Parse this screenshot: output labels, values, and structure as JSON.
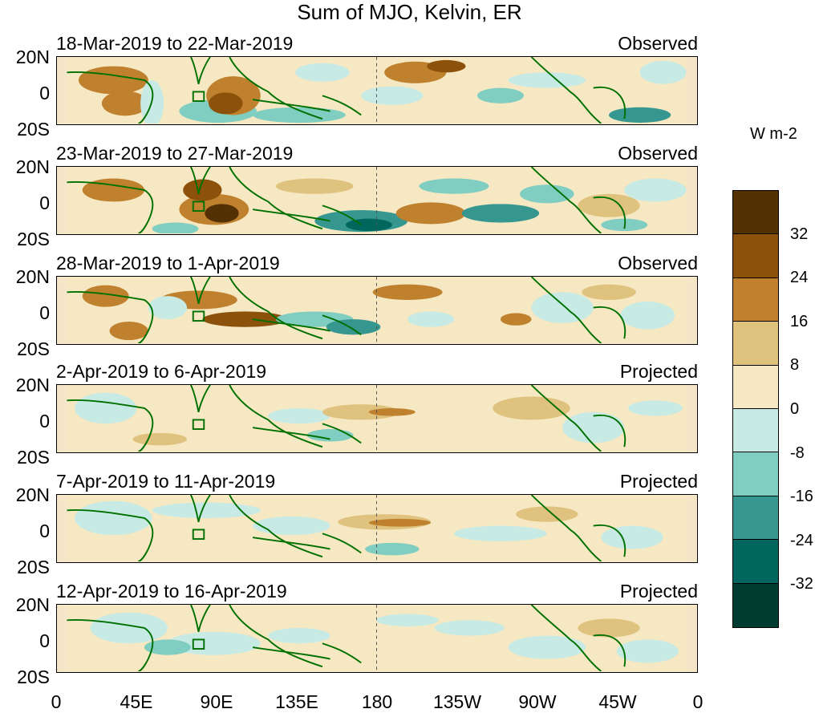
{
  "title": "Sum of MJO, Kelvin, ER",
  "lat_labels": [
    "20N",
    "0",
    "20S"
  ],
  "lon_labels": [
    "0",
    "45E",
    "90E",
    "135E",
    "180",
    "135W",
    "90W",
    "45W",
    "0"
  ],
  "panels": [
    {
      "period": "18-Mar-2019 to 22-Mar-2019",
      "status": "Observed"
    },
    {
      "period": "23-Mar-2019 to 27-Mar-2019",
      "status": "Observed"
    },
    {
      "period": "28-Mar-2019 to 1-Apr-2019",
      "status": "Observed"
    },
    {
      "period": "2-Apr-2019 to 6-Apr-2019",
      "status": "Projected"
    },
    {
      "period": "7-Apr-2019 to 11-Apr-2019",
      "status": "Projected"
    },
    {
      "period": "12-Apr-2019 to 16-Apr-2019",
      "status": "Projected"
    }
  ],
  "colorbar": {
    "units": "W m-2",
    "labels": [
      "32",
      "24",
      "16",
      "8",
      "0",
      "-8",
      "-16",
      "-24",
      "-32"
    ],
    "colors": [
      "#543005",
      "#8c510a",
      "#bf812d",
      "#dfc27d",
      "#f6e8c3",
      "#c7eae5",
      "#80cdc1",
      "#35978f",
      "#01665e",
      "#003c30"
    ]
  }
}
